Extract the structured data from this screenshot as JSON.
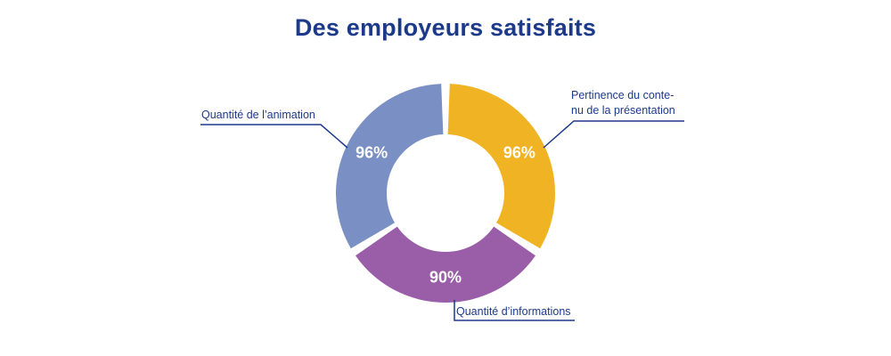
{
  "chart_data": {
    "type": "pie",
    "variant": "donut",
    "title": "Des employeurs satisfaits",
    "slices": [
      {
        "label_lines": [
          "Pertinence du conte-",
          "nu de la présentation"
        ],
        "value": 96,
        "value_label": "96%",
        "color": "#f0b323"
      },
      {
        "label_lines": [
          "Quantité d’informations"
        ],
        "value": 90,
        "value_label": "90%",
        "color": "#9a5ea8"
      },
      {
        "label_lines": [
          "Quantité de l’animation"
        ],
        "value": 96,
        "value_label": "96%",
        "color": "#7a8fc4"
      }
    ],
    "leader_color": "#1d3a8a"
  }
}
